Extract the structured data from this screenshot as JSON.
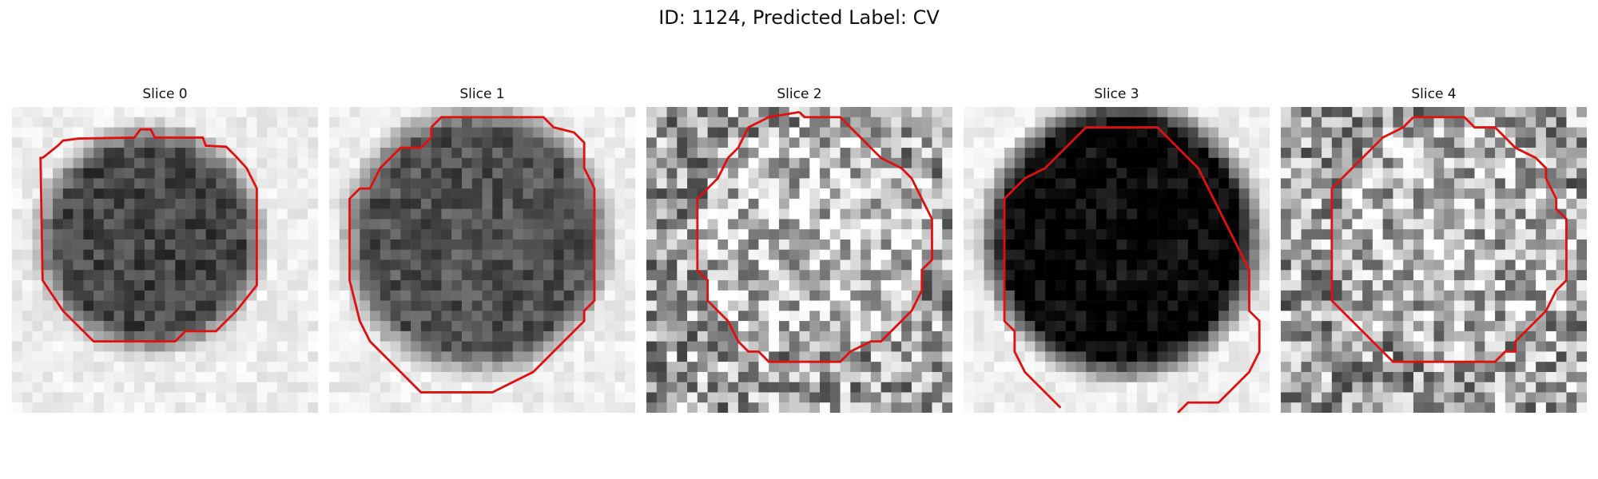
{
  "figure": {
    "title": "ID: 1124, Predicted Label: CV"
  },
  "slices": [
    {
      "title": "Slice 0",
      "contour_color": "#e01010",
      "background": "light",
      "blob_darkness": 0.55
    },
    {
      "title": "Slice 1",
      "contour_color": "#e01010",
      "background": "light",
      "blob_darkness": 0.5
    },
    {
      "title": "Slice 2",
      "contour_color": "#e01010",
      "background": "noisy-mid",
      "blob_darkness": 0.15
    },
    {
      "title": "Slice 3",
      "contour_color": "#e01010",
      "background": "light",
      "blob_darkness": 0.8
    },
    {
      "title": "Slice 4",
      "contour_color": "#e01010",
      "background": "noisy-mid",
      "blob_darkness": 0.1
    }
  ]
}
